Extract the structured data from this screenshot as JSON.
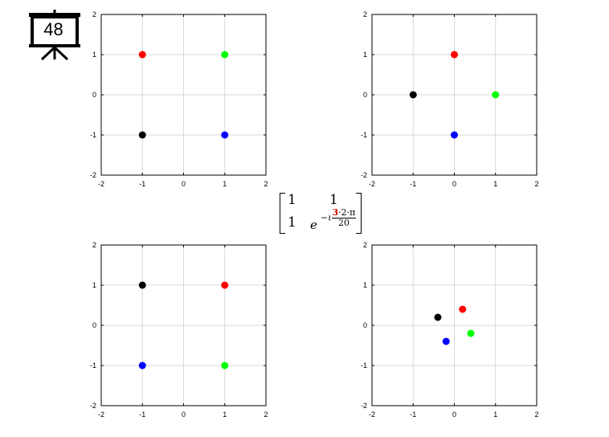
{
  "slide": {
    "number": "48"
  },
  "matrix": {
    "r1c1": "1",
    "r1c2": "1",
    "r2c1": "1",
    "base": "e",
    "exp_sign": "−ι",
    "exp_k": "3",
    "exp_rest": "·2·π",
    "exp_den": "20"
  },
  "colors": {
    "red": "#ff0000",
    "green": "#00ff00",
    "blue": "#0000ff",
    "black": "#000000"
  },
  "chart_data": [
    {
      "type": "scatter",
      "xlim": [
        -2,
        2
      ],
      "ylim": [
        -2,
        2
      ],
      "xticks": [
        "-2",
        "-1",
        "0",
        "1",
        "2"
      ],
      "yticks": [
        "-2",
        "-1",
        "0",
        "1",
        "2"
      ],
      "grid": true,
      "points": [
        {
          "x": -1,
          "y": 1,
          "color": "red"
        },
        {
          "x": 1,
          "y": 1,
          "color": "green"
        },
        {
          "x": -1,
          "y": -1,
          "color": "black"
        },
        {
          "x": 1,
          "y": -1,
          "color": "blue"
        }
      ]
    },
    {
      "type": "scatter",
      "xlim": [
        -2,
        2
      ],
      "ylim": [
        -2,
        2
      ],
      "xticks": [
        "-2",
        "-1",
        "0",
        "1",
        "2"
      ],
      "yticks": [
        "-2",
        "-1",
        "0",
        "1",
        "2"
      ],
      "grid": true,
      "points": [
        {
          "x": 0,
          "y": 1,
          "color": "red"
        },
        {
          "x": -1,
          "y": 0,
          "color": "black"
        },
        {
          "x": 1,
          "y": 0,
          "color": "green"
        },
        {
          "x": 0,
          "y": -1,
          "color": "blue"
        }
      ]
    },
    {
      "type": "scatter",
      "xlim": [
        -2,
        2
      ],
      "ylim": [
        -2,
        2
      ],
      "xticks": [
        "-2",
        "-1",
        "0",
        "1",
        "2"
      ],
      "yticks": [
        "-2",
        "-1",
        "0",
        "1",
        "2"
      ],
      "grid": true,
      "points": [
        {
          "x": -1,
          "y": 1,
          "color": "black"
        },
        {
          "x": 1,
          "y": 1,
          "color": "red"
        },
        {
          "x": -1,
          "y": -1,
          "color": "blue"
        },
        {
          "x": 1,
          "y": -1,
          "color": "green"
        }
      ]
    },
    {
      "type": "scatter",
      "xlim": [
        -2,
        2
      ],
      "ylim": [
        -2,
        2
      ],
      "xticks": [
        "-2",
        "-1",
        "0",
        "1",
        "2"
      ],
      "yticks": [
        "-2",
        "-1",
        "0",
        "1",
        "2"
      ],
      "grid": true,
      "points": [
        {
          "x": 0.2,
          "y": 0.4,
          "color": "red"
        },
        {
          "x": -0.4,
          "y": 0.2,
          "color": "black"
        },
        {
          "x": 0.4,
          "y": -0.2,
          "color": "green"
        },
        {
          "x": -0.2,
          "y": -0.4,
          "color": "blue"
        }
      ]
    }
  ]
}
